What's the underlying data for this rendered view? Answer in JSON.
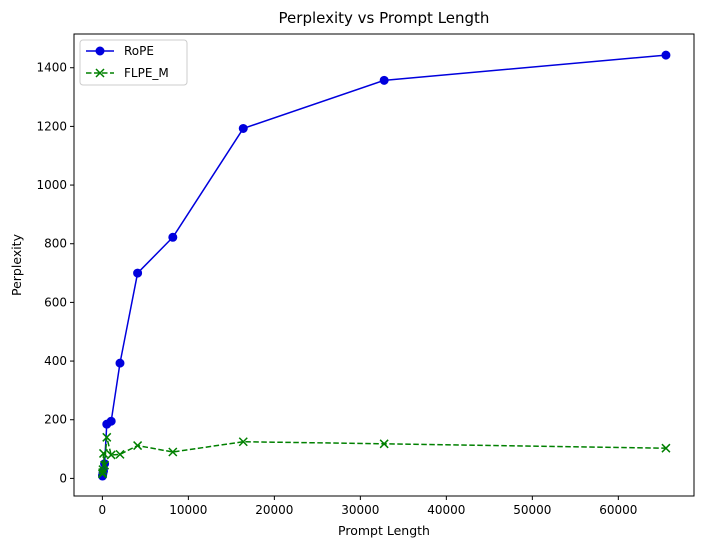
{
  "chart_data": {
    "type": "line",
    "title": "Perplexity vs Prompt Length",
    "xlabel": "Prompt Length",
    "ylabel": "Perplexity",
    "xlim": [
      -3300,
      68800
    ],
    "ylim": [
      -60,
      1515
    ],
    "xticks": [
      0,
      10000,
      20000,
      30000,
      40000,
      50000,
      60000
    ],
    "yticks": [
      0,
      200,
      400,
      600,
      800,
      1000,
      1200,
      1400
    ],
    "grid": false,
    "legend_position": "top-left",
    "series": [
      {
        "name": "RoPE",
        "color": "#0000dd",
        "linestyle": "solid",
        "marker": "circle",
        "x": [
          16,
          32,
          64,
          128,
          256,
          512,
          1024,
          2048,
          4096,
          8192,
          16384,
          32768,
          65536
        ],
        "y": [
          8,
          12,
          18,
          25,
          50,
          185,
          195,
          393,
          700,
          822,
          1193,
          1357,
          1443
        ]
      },
      {
        "name": "FLPE_M",
        "color": "#008000",
        "linestyle": "dashed",
        "marker": "x",
        "x": [
          16,
          32,
          64,
          128,
          256,
          512,
          1024,
          2048,
          4096,
          8192,
          16384,
          32768,
          65536
        ],
        "y": [
          15,
          20,
          30,
          85,
          45,
          140,
          80,
          82,
          112,
          90,
          125,
          118,
          103
        ]
      }
    ]
  }
}
